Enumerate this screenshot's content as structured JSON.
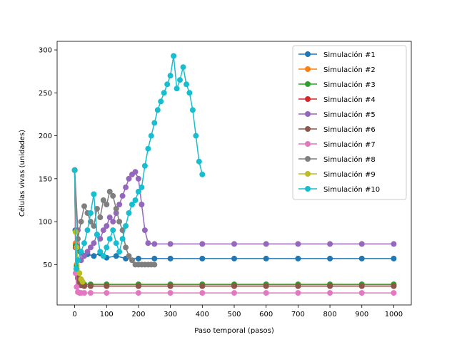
{
  "chart_data": {
    "type": "line",
    "xlabel": "Paso temporal (pasos)",
    "ylabel": "Células vivas (unidades)",
    "xlim": [
      -55,
      1055
    ],
    "ylim": [
      3,
      310
    ],
    "xticks": [
      0,
      100,
      200,
      300,
      400,
      500,
      600,
      700,
      800,
      900,
      1000
    ],
    "yticks": [
      50,
      100,
      150,
      200,
      250,
      300
    ],
    "grid": false,
    "legend_position": "upper right",
    "marker": "circle",
    "series": [
      {
        "name": "Simulación #1",
        "color": "#1f77b4",
        "x": [
          0,
          2,
          5,
          10,
          20,
          40,
          60,
          80,
          100,
          130,
          160,
          200,
          250,
          300,
          400,
          500,
          600,
          700,
          800,
          900,
          1000
        ],
        "y": [
          160,
          90,
          72,
          66,
          64,
          62,
          60,
          63,
          58,
          60,
          57,
          57,
          57,
          57,
          57,
          57,
          57,
          57,
          57,
          57,
          57
        ]
      },
      {
        "name": "Simulación #2",
        "color": "#ff7f0e",
        "x": [
          0,
          3,
          6,
          10,
          15,
          20,
          30,
          50,
          100,
          200,
          300,
          400,
          500,
          600,
          700,
          800,
          900,
          1000
        ],
        "y": [
          160,
          75,
          50,
          38,
          30,
          28,
          27,
          27,
          27,
          27,
          27,
          27,
          27,
          27,
          27,
          27,
          27,
          27
        ]
      },
      {
        "name": "Simulación #3",
        "color": "#2ca02c",
        "x": [
          0,
          3,
          6,
          10,
          15,
          20,
          30,
          50,
          100,
          200,
          300,
          400,
          500,
          600,
          700,
          800,
          900,
          1000
        ],
        "y": [
          160,
          72,
          48,
          36,
          30,
          28,
          27,
          27,
          27,
          27,
          27,
          27,
          27,
          27,
          27,
          27,
          27,
          27
        ]
      },
      {
        "name": "Simulación #4",
        "color": "#d62728",
        "x": [
          0,
          3,
          6,
          10,
          15,
          20,
          30,
          50,
          100,
          200,
          300,
          400,
          500,
          600,
          700,
          800,
          900,
          1000
        ],
        "y": [
          160,
          70,
          45,
          34,
          28,
          26,
          25,
          25,
          25,
          25,
          25,
          25,
          25,
          25,
          25,
          25,
          25,
          25
        ]
      },
      {
        "name": "Simulación #5",
        "color": "#9467bd",
        "x": [
          0,
          10,
          20,
          30,
          40,
          50,
          60,
          70,
          80,
          90,
          100,
          110,
          120,
          130,
          140,
          150,
          160,
          170,
          180,
          190,
          200,
          210,
          220,
          230,
          250,
          300,
          400,
          500,
          600,
          700,
          800,
          900,
          1000
        ],
        "y": [
          160,
          90,
          55,
          60,
          65,
          70,
          75,
          85,
          80,
          90,
          95,
          105,
          100,
          110,
          120,
          130,
          140,
          150,
          155,
          158,
          150,
          120,
          90,
          75,
          74,
          74,
          74,
          74,
          74,
          74,
          74,
          74,
          74
        ]
      },
      {
        "name": "Simulación #6",
        "color": "#8c564b",
        "x": [
          0,
          3,
          6,
          10,
          15,
          20,
          30,
          50,
          100,
          200,
          300,
          400,
          500,
          600,
          700,
          800,
          900,
          1000
        ],
        "y": [
          160,
          70,
          45,
          34,
          28,
          26,
          25,
          25,
          25,
          25,
          25,
          25,
          25,
          25,
          25,
          25,
          25,
          25
        ]
      },
      {
        "name": "Simulación #7",
        "color": "#e377c2",
        "x": [
          0,
          3,
          6,
          10,
          15,
          20,
          30,
          50,
          100,
          200,
          300,
          400,
          500,
          600,
          700,
          800,
          900,
          1000
        ],
        "y": [
          160,
          40,
          24,
          18,
          17,
          17,
          17,
          17,
          17,
          17,
          17,
          17,
          17,
          17,
          17,
          17,
          17,
          17
        ]
      },
      {
        "name": "Simulación #8",
        "color": "#7f7f7f",
        "x": [
          0,
          10,
          20,
          30,
          40,
          50,
          60,
          70,
          80,
          90,
          100,
          110,
          120,
          130,
          140,
          150,
          160,
          170,
          180,
          190,
          200,
          210,
          220,
          230,
          240,
          250
        ],
        "y": [
          160,
          80,
          100,
          118,
          110,
          100,
          95,
          115,
          105,
          125,
          120,
          135,
          130,
          115,
          100,
          90,
          70,
          60,
          55,
          50,
          50,
          50,
          50,
          50,
          50,
          50
        ]
      },
      {
        "name": "Simulación #9",
        "color": "#bcbd22",
        "x": [
          0,
          3,
          6,
          10,
          15,
          20,
          25
        ],
        "y": [
          160,
          88,
          70,
          55,
          40,
          33,
          30
        ]
      },
      {
        "name": "Simulación #10",
        "color": "#17becf",
        "x": [
          0,
          5,
          10,
          20,
          30,
          40,
          50,
          60,
          70,
          80,
          90,
          100,
          110,
          120,
          130,
          140,
          150,
          160,
          170,
          180,
          190,
          200,
          210,
          220,
          230,
          240,
          250,
          260,
          270,
          280,
          290,
          300,
          310,
          320,
          330,
          340,
          350,
          360,
          370,
          380,
          390,
          400
        ],
        "y": [
          160,
          45,
          55,
          65,
          75,
          90,
          110,
          132,
          85,
          65,
          60,
          70,
          80,
          90,
          75,
          65,
          80,
          95,
          110,
          120,
          125,
          135,
          140,
          165,
          185,
          200,
          215,
          230,
          240,
          250,
          260,
          270,
          293,
          255,
          265,
          280,
          260,
          250,
          230,
          200,
          170,
          155
        ]
      }
    ]
  }
}
